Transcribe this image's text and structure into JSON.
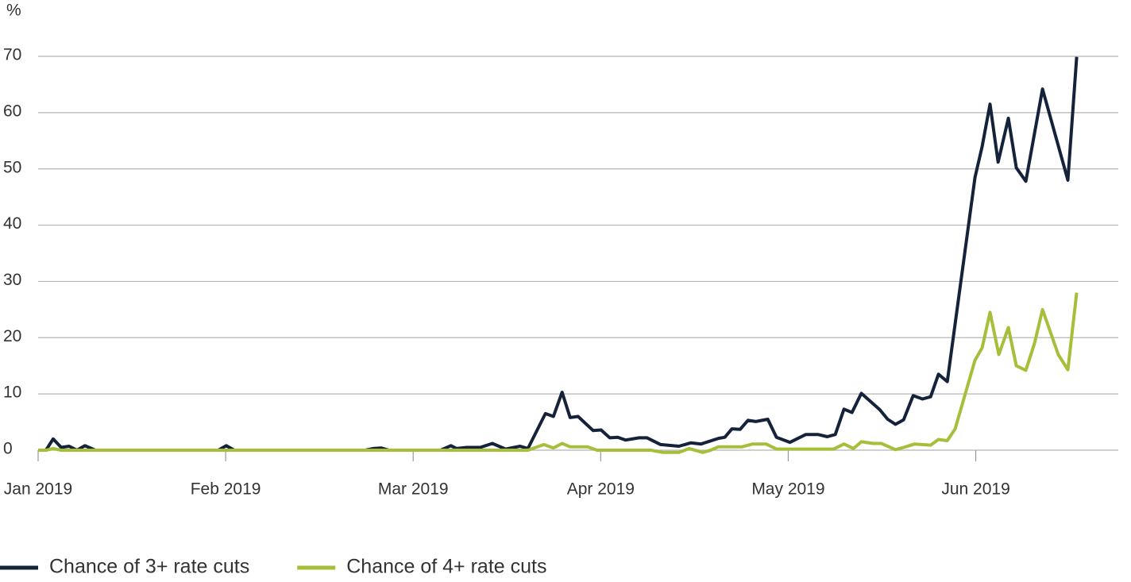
{
  "chart_data": {
    "type": "line",
    "y_label": "%",
    "xlim": [
      0,
      5.76
    ],
    "xticks": [
      {
        "value": 0,
        "label": "Jan 2019"
      },
      {
        "value": 1,
        "label": "Feb 2019"
      },
      {
        "value": 2,
        "label": "Mar 2019"
      },
      {
        "value": 3,
        "label": "Apr 2019"
      },
      {
        "value": 4,
        "label": "May 2019"
      },
      {
        "value": 5,
        "label": "Jun 2019"
      }
    ],
    "ylim": [
      0,
      70
    ],
    "yticks": [
      0,
      10,
      20,
      30,
      40,
      50,
      60,
      70
    ],
    "grid": true,
    "legend": "bottom",
    "series": [
      {
        "name": "Chance of 3+ rate cuts",
        "color": "#14233a",
        "x": [
          0,
          0.042,
          0.08,
          0.123,
          0.165,
          0.207,
          0.25,
          0.305,
          0.961,
          1.003,
          1.046,
          1.744,
          1.787,
          1.829,
          1.871,
          2.146,
          2.201,
          2.231,
          2.286,
          2.358,
          2.422,
          2.493,
          2.57,
          2.612,
          2.705,
          2.748,
          2.794,
          2.837,
          2.879,
          2.959,
          3.002,
          3.048,
          3.091,
          3.133,
          3.205,
          3.247,
          3.319,
          3.417,
          3.48,
          3.535,
          3.628,
          3.662,
          3.7,
          3.743,
          3.785,
          3.827,
          3.891,
          3.937,
          4.009,
          4.094,
          4.158,
          4.208,
          4.251,
          4.297,
          4.34,
          4.39,
          4.488,
          4.53,
          4.572,
          4.615,
          4.666,
          4.716,
          4.759,
          4.801,
          4.848,
          4.996,
          5.034,
          5.076,
          5.119,
          5.174,
          5.216,
          5.267,
          5.356,
          5.491,
          5.538
        ],
        "values": [
          0,
          0,
          2,
          0.5,
          0.7,
          0,
          0.8,
          0,
          0,
          0.8,
          0,
          0,
          0.3,
          0.4,
          0,
          0,
          0.8,
          0.3,
          0.5,
          0.5,
          1.2,
          0.2,
          0.7,
          0.3,
          6.5,
          6,
          10.3,
          5.8,
          6,
          3.5,
          3.6,
          2.2,
          2.3,
          1.8,
          2.2,
          2.2,
          1,
          0.7,
          1.3,
          1.1,
          2.1,
          2.3,
          3.8,
          3.7,
          5.3,
          5.1,
          5.5,
          2.3,
          1.4,
          2.8,
          2.8,
          2.4,
          2.8,
          7.3,
          6.7,
          10.1,
          7.2,
          5.5,
          4.6,
          5.4,
          9.7,
          9.1,
          9.5,
          13.5,
          12.2,
          48.5,
          54,
          61.5,
          51.2,
          59,
          50.2,
          47.8,
          64.2,
          48,
          69.9
        ]
      },
      {
        "name": "Chance of 4+ rate cuts",
        "color": "#a5bf3b",
        "x": [
          0,
          0.042,
          0.08,
          0.123,
          2.612,
          2.697,
          2.748,
          2.794,
          2.837,
          2.93,
          2.981,
          3.268,
          3.332,
          3.417,
          3.472,
          3.544,
          3.586,
          3.628,
          3.755,
          3.81,
          3.882,
          3.937,
          4.242,
          4.297,
          4.348,
          4.39,
          4.454,
          4.496,
          4.572,
          4.615,
          4.674,
          4.759,
          4.801,
          4.848,
          4.89,
          4.996,
          5.034,
          5.076,
          5.123,
          5.174,
          5.216,
          5.267,
          5.313,
          5.356,
          5.44,
          5.491,
          5.538
        ],
        "values": [
          0,
          0,
          0.3,
          0,
          0,
          1,
          0.4,
          1.2,
          0.6,
          0.6,
          0,
          0,
          -0.4,
          -0.4,
          0.3,
          -0.4,
          0,
          0.6,
          0.6,
          1.1,
          1.1,
          0.2,
          0.2,
          1.1,
          0.3,
          1.5,
          1.2,
          1.2,
          0.1,
          0.5,
          1.1,
          0.9,
          1.9,
          1.7,
          3.8,
          16,
          18.2,
          24.5,
          17,
          21.8,
          15,
          14.2,
          19,
          25,
          17,
          14.3,
          28
        ]
      }
    ]
  }
}
